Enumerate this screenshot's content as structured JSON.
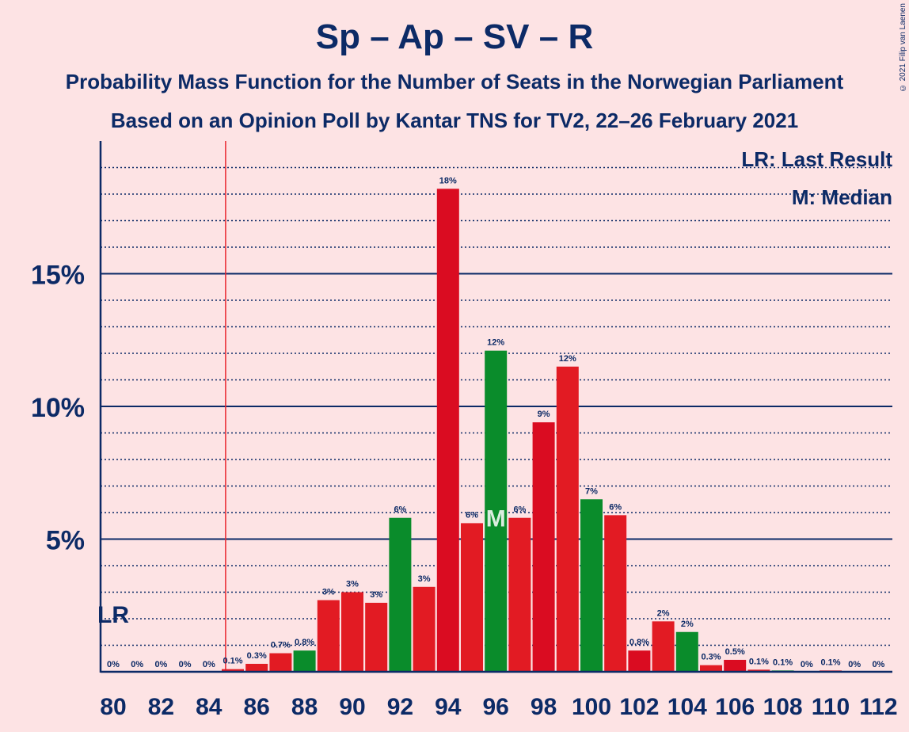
{
  "header": {
    "title": "Sp – Ap – SV – R",
    "subtitle1": "Probability Mass Function for the Number of Seats in the Norwegian Parliament",
    "subtitle2": "Based on an Opinion Poll by Kantar TNS for TV2, 22–26 February 2021",
    "credit": "© 2021 Filip van Laenen"
  },
  "legend": {
    "lr": "LR: Last Result",
    "m": "M: Median"
  },
  "colors": {
    "background": "#fde3e4",
    "red": "#e21b23",
    "red_dark": "#da0c21",
    "green": "#0a8c2b",
    "navy": "#0c2a66",
    "lr_line": "#e8262f"
  },
  "chart_data": {
    "type": "bar",
    "title": "Sp – Ap – SV – R",
    "xlabel": "",
    "ylabel": "",
    "ylim": [
      0,
      20
    ],
    "y_ticks": [
      {
        "value": 5,
        "label": "5%"
      },
      {
        "value": 10,
        "label": "10%"
      },
      {
        "value": 15,
        "label": "15%"
      }
    ],
    "x_tick_labels": [
      "80",
      "82",
      "84",
      "86",
      "88",
      "90",
      "92",
      "94",
      "96",
      "98",
      "100",
      "102",
      "104",
      "106",
      "108",
      "110",
      "112"
    ],
    "last_result_seat": 85,
    "last_result_label": "LR",
    "median_seat": 96,
    "median_label": "M",
    "grid": "dotted every 1%, solid every 5%",
    "legend_position": "top-right",
    "bars": [
      {
        "seat": 80,
        "value": 0,
        "label": "0%",
        "color": "red"
      },
      {
        "seat": 81,
        "value": 0,
        "label": "0%",
        "color": "red"
      },
      {
        "seat": 82,
        "value": 0,
        "label": "0%",
        "color": "red"
      },
      {
        "seat": 83,
        "value": 0,
        "label": "0%",
        "color": "red"
      },
      {
        "seat": 84,
        "value": 0,
        "label": "0%",
        "color": "red"
      },
      {
        "seat": 85,
        "value": 0.1,
        "label": "0.1%",
        "color": "red"
      },
      {
        "seat": 86,
        "value": 0.3,
        "label": "0.3%",
        "color": "red"
      },
      {
        "seat": 87,
        "value": 0.7,
        "label": "0.7%",
        "color": "red"
      },
      {
        "seat": 88,
        "value": 0.8,
        "label": "0.8%",
        "color": "green"
      },
      {
        "seat": 89,
        "value": 2.7,
        "label": "3%",
        "color": "red"
      },
      {
        "seat": 90,
        "value": 3.0,
        "label": "3%",
        "color": "red"
      },
      {
        "seat": 91,
        "value": 2.6,
        "label": "3%",
        "color": "red"
      },
      {
        "seat": 92,
        "value": 5.8,
        "label": "6%",
        "color": "green"
      },
      {
        "seat": 93,
        "value": 3.2,
        "label": "3%",
        "color": "red"
      },
      {
        "seat": 94,
        "value": 18.2,
        "label": "18%",
        "color": "red_dark"
      },
      {
        "seat": 95,
        "value": 5.6,
        "label": "6%",
        "color": "red"
      },
      {
        "seat": 96,
        "value": 12.1,
        "label": "12%",
        "color": "green"
      },
      {
        "seat": 97,
        "value": 5.8,
        "label": "6%",
        "color": "red"
      },
      {
        "seat": 98,
        "value": 9.4,
        "label": "9%",
        "color": "red_dark"
      },
      {
        "seat": 99,
        "value": 11.5,
        "label": "12%",
        "color": "red"
      },
      {
        "seat": 100,
        "value": 6.5,
        "label": "7%",
        "color": "green"
      },
      {
        "seat": 101,
        "value": 5.9,
        "label": "6%",
        "color": "red"
      },
      {
        "seat": 102,
        "value": 0.8,
        "label": "0.8%",
        "color": "red_dark"
      },
      {
        "seat": 103,
        "value": 1.9,
        "label": "2%",
        "color": "red"
      },
      {
        "seat": 104,
        "value": 1.5,
        "label": "2%",
        "color": "green"
      },
      {
        "seat": 105,
        "value": 0.25,
        "label": "0.3%",
        "color": "red"
      },
      {
        "seat": 106,
        "value": 0.45,
        "label": "0.5%",
        "color": "red_dark"
      },
      {
        "seat": 107,
        "value": 0.08,
        "label": "0.1%",
        "color": "red"
      },
      {
        "seat": 108,
        "value": 0.05,
        "label": "0.1%",
        "color": "green"
      },
      {
        "seat": 109,
        "value": 0,
        "label": "0%",
        "color": "red"
      },
      {
        "seat": 110,
        "value": 0.05,
        "label": "0.1%",
        "color": "red"
      },
      {
        "seat": 111,
        "value": 0,
        "label": "0%",
        "color": "red"
      },
      {
        "seat": 112,
        "value": 0,
        "label": "0%",
        "color": "red"
      }
    ]
  }
}
